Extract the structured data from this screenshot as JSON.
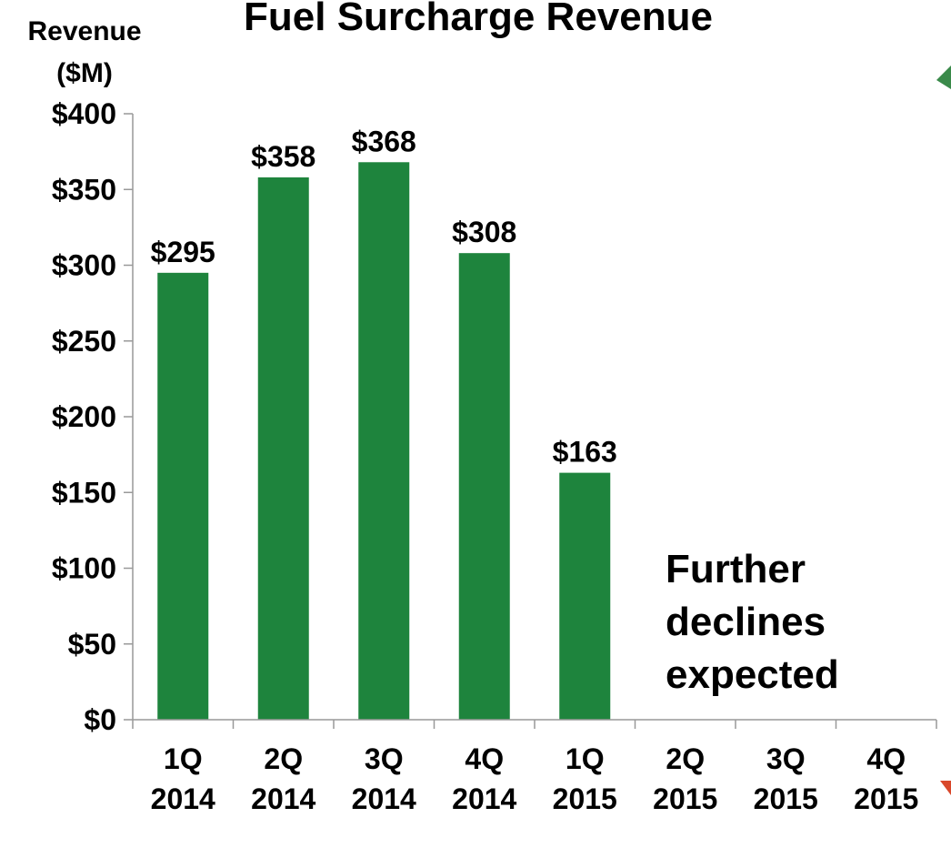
{
  "chart_data": {
    "type": "bar",
    "title": "Fuel Surcharge Revenue",
    "ylabel_lines": [
      "Revenue",
      "($M)"
    ],
    "categories": [
      [
        "1Q",
        "2014"
      ],
      [
        "2Q",
        "2014"
      ],
      [
        "3Q",
        "2014"
      ],
      [
        "4Q",
        "2014"
      ],
      [
        "1Q",
        "2015"
      ],
      [
        "2Q",
        "2015"
      ],
      [
        "3Q",
        "2015"
      ],
      [
        "4Q",
        "2015"
      ]
    ],
    "values": [
      295,
      358,
      368,
      308,
      163,
      null,
      null,
      null
    ],
    "data_labels": [
      "$295",
      "$358",
      "$368",
      "$308",
      "$163",
      "",
      "",
      ""
    ],
    "ylim": [
      0,
      400
    ],
    "yticks": [
      0,
      50,
      100,
      150,
      200,
      250,
      300,
      350,
      400
    ],
    "ytick_labels": [
      "$0",
      "$50",
      "$100",
      "$150",
      "$200",
      "$250",
      "$300",
      "$350",
      "$400"
    ],
    "annotation_lines": [
      "Further",
      "declines",
      "expected"
    ],
    "grid": false,
    "legend": "none",
    "colors": {
      "bar": "#1e843d",
      "axis": "#999999",
      "text": "#000000",
      "corner_accent_top": "#3a8a4a",
      "corner_accent_bottom": "#d9482b"
    }
  }
}
